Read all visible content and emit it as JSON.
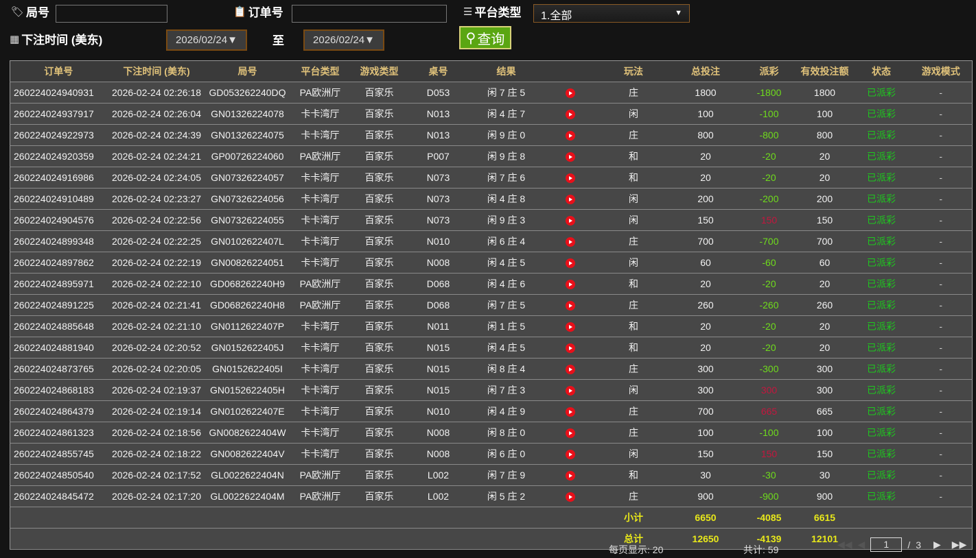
{
  "filters": {
    "round_label": "局号",
    "round_value": "",
    "order_label": "订单号",
    "order_value": "",
    "platform_label": "平台类型",
    "platform_value": "1.全部",
    "time_label": "下注时间 (美东)",
    "date_from": "2026/02/24▼",
    "to_label": "至",
    "date_to": "2026/02/24▼",
    "query_label": "查询"
  },
  "table": {
    "headers": [
      "订单号",
      "下注时间 (美东)",
      "局号",
      "平台类型",
      "游戏类型",
      "桌号",
      "结果",
      "",
      "玩法",
      "总投注",
      "派彩",
      "有效投注额",
      "状态",
      "游戏模式"
    ],
    "rows": [
      [
        "260224024940931",
        "2026-02-24 02:26:18",
        "GD053262240DQ",
        "PA欧洲厅",
        "百家乐",
        "D053",
        "闲 7 庄 5",
        "庄",
        "1800",
        "-1800",
        "1800",
        "已派彩",
        "-"
      ],
      [
        "260224024937917",
        "2026-02-24 02:26:04",
        "GN01326224078",
        "卡卡湾厅",
        "百家乐",
        "N013",
        "闲 4 庄 7",
        "闲",
        "100",
        "-100",
        "100",
        "已派彩",
        "-"
      ],
      [
        "260224024922973",
        "2026-02-24 02:24:39",
        "GN01326224075",
        "卡卡湾厅",
        "百家乐",
        "N013",
        "闲 9 庄 0",
        "庄",
        "800",
        "-800",
        "800",
        "已派彩",
        "-"
      ],
      [
        "260224024920359",
        "2026-02-24 02:24:21",
        "GP00726224060",
        "PA欧洲厅",
        "百家乐",
        "P007",
        "闲 9 庄 8",
        "和",
        "20",
        "-20",
        "20",
        "已派彩",
        "-"
      ],
      [
        "260224024916986",
        "2026-02-24 02:24:05",
        "GN07326224057",
        "卡卡湾厅",
        "百家乐",
        "N073",
        "闲 7 庄 6",
        "和",
        "20",
        "-20",
        "20",
        "已派彩",
        "-"
      ],
      [
        "260224024910489",
        "2026-02-24 02:23:27",
        "GN07326224056",
        "卡卡湾厅",
        "百家乐",
        "N073",
        "闲 4 庄 8",
        "闲",
        "200",
        "-200",
        "200",
        "已派彩",
        "-"
      ],
      [
        "260224024904576",
        "2026-02-24 02:22:56",
        "GN07326224055",
        "卡卡湾厅",
        "百家乐",
        "N073",
        "闲 9 庄 3",
        "闲",
        "150",
        "150",
        "150",
        "已派彩",
        "-"
      ],
      [
        "260224024899348",
        "2026-02-24 02:22:25",
        "GN0102622407L",
        "卡卡湾厅",
        "百家乐",
        "N010",
        "闲 6 庄 4",
        "庄",
        "700",
        "-700",
        "700",
        "已派彩",
        "-"
      ],
      [
        "260224024897862",
        "2026-02-24 02:22:19",
        "GN00826224051",
        "卡卡湾厅",
        "百家乐",
        "N008",
        "闲 4 庄 5",
        "闲",
        "60",
        "-60",
        "60",
        "已派彩",
        "-"
      ],
      [
        "260224024895971",
        "2026-02-24 02:22:10",
        "GD068262240H9",
        "PA欧洲厅",
        "百家乐",
        "D068",
        "闲 4 庄 6",
        "和",
        "20",
        "-20",
        "20",
        "已派彩",
        "-"
      ],
      [
        "260224024891225",
        "2026-02-24 02:21:41",
        "GD068262240H8",
        "PA欧洲厅",
        "百家乐",
        "D068",
        "闲 7 庄 5",
        "庄",
        "260",
        "-260",
        "260",
        "已派彩",
        "-"
      ],
      [
        "260224024885648",
        "2026-02-24 02:21:10",
        "GN0112622407P",
        "卡卡湾厅",
        "百家乐",
        "N011",
        "闲 1 庄 5",
        "和",
        "20",
        "-20",
        "20",
        "已派彩",
        "-"
      ],
      [
        "260224024881940",
        "2026-02-24 02:20:52",
        "GN0152622405J",
        "卡卡湾厅",
        "百家乐",
        "N015",
        "闲 4 庄 5",
        "和",
        "20",
        "-20",
        "20",
        "已派彩",
        "-"
      ],
      [
        "260224024873765",
        "2026-02-24 02:20:05",
        "GN0152622405I",
        "卡卡湾厅",
        "百家乐",
        "N015",
        "闲 8 庄 4",
        "庄",
        "300",
        "-300",
        "300",
        "已派彩",
        "-"
      ],
      [
        "260224024868183",
        "2026-02-24 02:19:37",
        "GN0152622405H",
        "卡卡湾厅",
        "百家乐",
        "N015",
        "闲 7 庄 3",
        "闲",
        "300",
        "300",
        "300",
        "已派彩",
        "-"
      ],
      [
        "260224024864379",
        "2026-02-24 02:19:14",
        "GN0102622407E",
        "卡卡湾厅",
        "百家乐",
        "N010",
        "闲 4 庄 9",
        "庄",
        "700",
        "665",
        "665",
        "已派彩",
        "-"
      ],
      [
        "260224024861323",
        "2026-02-24 02:18:56",
        "GN0082622404W",
        "卡卡湾厅",
        "百家乐",
        "N008",
        "闲 8 庄 0",
        "庄",
        "100",
        "-100",
        "100",
        "已派彩",
        "-"
      ],
      [
        "260224024855745",
        "2026-02-24 02:18:22",
        "GN0082622404V",
        "卡卡湾厅",
        "百家乐",
        "N008",
        "闲 6 庄 0",
        "闲",
        "150",
        "150",
        "150",
        "已派彩",
        "-"
      ],
      [
        "260224024850540",
        "2026-02-24 02:17:52",
        "GL0022622404N",
        "PA欧洲厅",
        "百家乐",
        "L002",
        "闲 7 庄 9",
        "和",
        "30",
        "-30",
        "30",
        "已派彩",
        "-"
      ],
      [
        "260224024845472",
        "2026-02-24 02:17:20",
        "GL0022622404M",
        "PA欧洲厅",
        "百家乐",
        "L002",
        "闲 5 庄 2",
        "庄",
        "900",
        "-900",
        "900",
        "已派彩",
        "-"
      ]
    ],
    "subtotal": {
      "label": "小计",
      "bet": "6650",
      "payout": "-4085",
      "valid": "6615"
    },
    "total": {
      "label": "总计",
      "bet": "12650",
      "payout": "-4139",
      "valid": "12101"
    }
  },
  "pagination": {
    "per_page": "每页显示: 20",
    "total": "共计: 59",
    "current": "1",
    "sep": "/",
    "pages": "3"
  },
  "colors": {
    "header_text": "#e0c27a",
    "payout_negative": "#6fdc1c",
    "payout_positive": "#c4163e",
    "status": "#1ec81e",
    "summary": "#e8e81a",
    "query_button": "#5aa612"
  }
}
